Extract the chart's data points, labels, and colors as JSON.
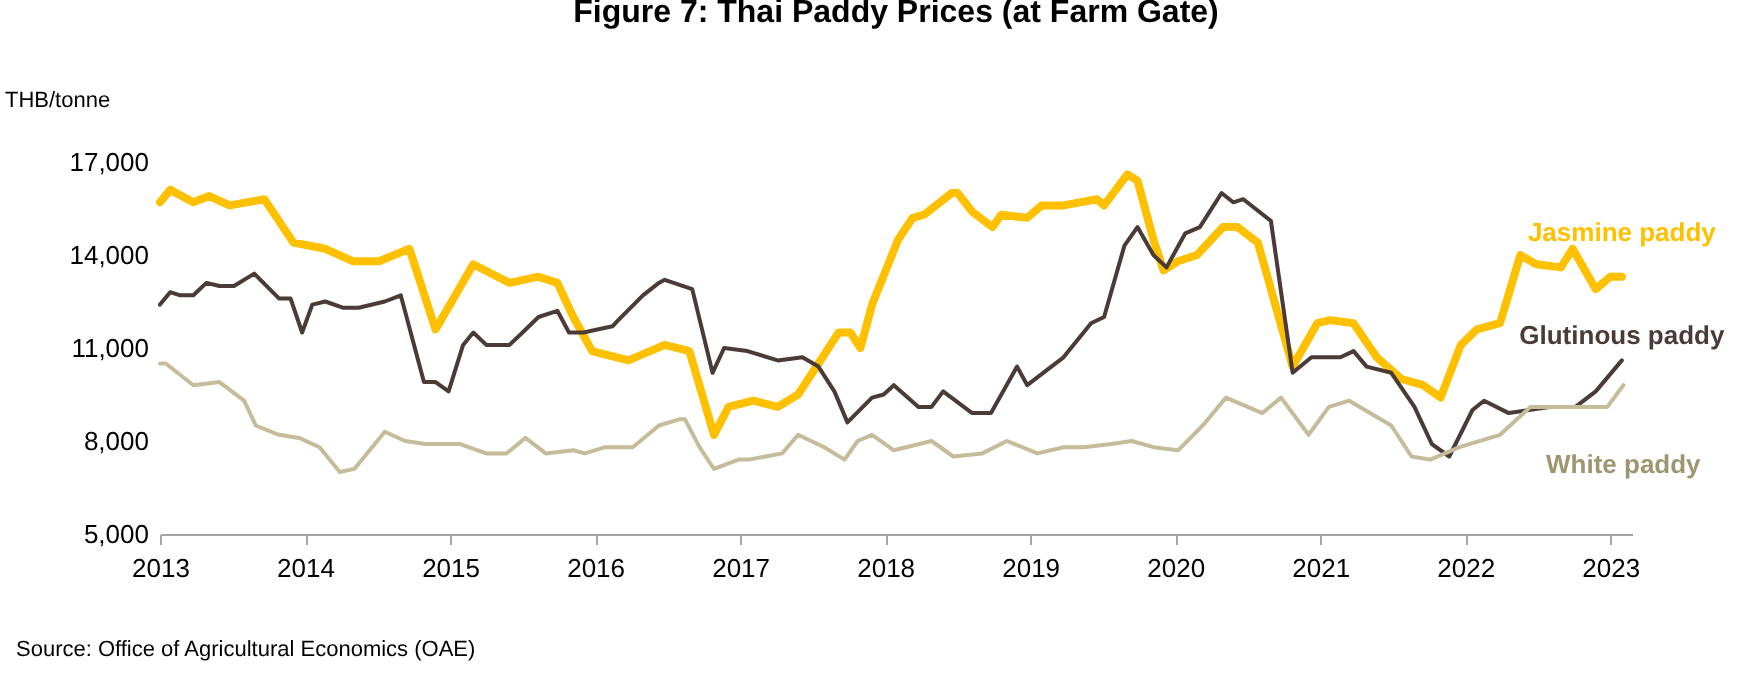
{
  "chart_data": {
    "type": "line",
    "title": "Figure 7: Thai Paddy Prices (at Farm Gate)",
    "ylabel": "THB/tonne",
    "annotations": [
      "Source: Office of Agricultural Economics (OAE)"
    ],
    "xlim": [
      2013,
      2023.15
    ],
    "xticks": [
      2013,
      2014,
      2015,
      2016,
      2017,
      2018,
      2019,
      2020,
      2021,
      2022,
      2023
    ],
    "ylim": [
      5000,
      17000
    ],
    "yticks": [
      {
        "value": 5000,
        "label": "5,000"
      },
      {
        "value": 8000,
        "label": "8,000"
      },
      {
        "value": 11000,
        "label": "11,000"
      },
      {
        "value": 14000,
        "label": "14,000"
      },
      {
        "value": 17000,
        "label": "17,000"
      }
    ],
    "grid": false,
    "legend": false,
    "series": [
      {
        "name": "Jasmine paddy",
        "color": "#ffc000",
        "x": [
          2013.0,
          2013.07,
          2013.23,
          2013.34,
          2013.48,
          2013.72,
          2013.92,
          2014.14,
          2014.33,
          2014.51,
          2014.72,
          2014.9,
          2015.16,
          2015.41,
          2015.61,
          2015.74,
          2015.85,
          2015.98,
          2016.23,
          2016.48,
          2016.65,
          2016.82,
          2016.92,
          2017.09,
          2017.26,
          2017.4,
          2017.68,
          2017.76,
          2017.83,
          2017.91,
          2018.09,
          2018.19,
          2018.27,
          2018.46,
          2018.5,
          2018.6,
          2018.74,
          2018.8,
          2018.98,
          2019.08,
          2019.23,
          2019.46,
          2019.51,
          2019.67,
          2019.74,
          2019.85,
          2019.92,
          2020.02,
          2020.15,
          2020.33,
          2020.43,
          2020.57,
          2020.81,
          2020.98,
          2021.07,
          2021.23,
          2021.39,
          2021.56,
          2021.71,
          2021.83,
          2021.97,
          2022.08,
          2022.24,
          2022.38,
          2022.49,
          2022.66,
          2022.74,
          2022.9,
          2023.0,
          2023.08
        ],
        "values": [
          15700,
          16100,
          15700,
          15900,
          15600,
          15800,
          14400,
          14200,
          13800,
          13800,
          14200,
          11600,
          13700,
          13100,
          13300,
          13100,
          12000,
          10900,
          10600,
          11100,
          10900,
          8200,
          9100,
          9300,
          9100,
          9500,
          11500,
          11500,
          11000,
          12400,
          14500,
          15200,
          15300,
          16000,
          16000,
          15400,
          14900,
          15300,
          15200,
          15600,
          15600,
          15800,
          15600,
          16600,
          16400,
          14500,
          13500,
          13800,
          14000,
          14900,
          14900,
          14400,
          10400,
          11800,
          11900,
          11800,
          10700,
          10000,
          9800,
          9400,
          11100,
          11600,
          11800,
          14000,
          13700,
          13600,
          14200,
          12900,
          13300,
          13300
        ]
      },
      {
        "name": "Glutinous paddy",
        "color": "#4a3b37",
        "x": [
          2013.0,
          2013.07,
          2013.14,
          2013.23,
          2013.32,
          2013.41,
          2013.51,
          2013.65,
          2013.82,
          2013.9,
          2013.98,
          2014.05,
          2014.14,
          2014.26,
          2014.37,
          2014.55,
          2014.66,
          2014.82,
          2014.9,
          2014.99,
          2015.09,
          2015.16,
          2015.25,
          2015.41,
          2015.5,
          2015.61,
          2015.74,
          2015.82,
          2015.92,
          2016.12,
          2016.16,
          2016.33,
          2016.44,
          2016.48,
          2016.67,
          2016.81,
          2016.89,
          2017.05,
          2017.26,
          2017.43,
          2017.54,
          2017.65,
          2017.74,
          2017.91,
          2017.99,
          2018.06,
          2018.23,
          2018.32,
          2018.4,
          2018.6,
          2018.73,
          2018.91,
          2018.98,
          2019.09,
          2019.23,
          2019.42,
          2019.51,
          2019.65,
          2019.74,
          2019.85,
          2019.94,
          2020.07,
          2020.17,
          2020.32,
          2020.4,
          2020.47,
          2020.66,
          2020.81,
          2020.94,
          2021.14,
          2021.23,
          2021.32,
          2021.49,
          2021.65,
          2021.77,
          2021.89,
          2022.05,
          2022.13,
          2022.3,
          2022.58,
          2022.76,
          2022.9,
          2023.08
        ],
        "values": [
          12400,
          12800,
          12700,
          12700,
          13100,
          13000,
          13000,
          13400,
          12600,
          12600,
          11500,
          12400,
          12500,
          12300,
          12300,
          12500,
          12700,
          9900,
          9900,
          9600,
          11100,
          11500,
          11100,
          11100,
          11500,
          12000,
          12200,
          11500,
          11500,
          11700,
          11900,
          12700,
          13100,
          13200,
          12900,
          10200,
          11000,
          10900,
          10600,
          10700,
          10400,
          9600,
          8600,
          9400,
          9500,
          9800,
          9100,
          9100,
          9600,
          8900,
          8900,
          10400,
          9800,
          10200,
          10700,
          11800,
          12000,
          14300,
          14900,
          14000,
          13600,
          14700,
          14900,
          16000,
          15700,
          15800,
          15100,
          10200,
          10700,
          10700,
          10900,
          10400,
          10200,
          9100,
          7900,
          7500,
          9000,
          9300,
          8900,
          9100,
          9100,
          9600,
          10600
        ]
      },
      {
        "name": "White paddy",
        "color": "#c4bc9a",
        "x": [
          2013.0,
          2013.04,
          2013.23,
          2013.41,
          2013.58,
          2013.66,
          2013.82,
          2013.96,
          2014.1,
          2014.24,
          2014.34,
          2014.55,
          2014.69,
          2014.83,
          2015.07,
          2015.25,
          2015.39,
          2015.52,
          2015.66,
          2015.85,
          2015.93,
          2016.07,
          2016.26,
          2016.44,
          2016.58,
          2016.62,
          2016.72,
          2016.82,
          2016.99,
          2017.06,
          2017.29,
          2017.4,
          2017.58,
          2017.72,
          2017.81,
          2017.91,
          2018.06,
          2018.32,
          2018.47,
          2018.67,
          2018.84,
          2019.05,
          2019.23,
          2019.37,
          2019.56,
          2019.7,
          2019.85,
          2020.02,
          2020.19,
          2020.35,
          2020.6,
          2020.73,
          2020.92,
          2021.06,
          2021.2,
          2021.49,
          2021.63,
          2021.76,
          2021.96,
          2022.24,
          2022.45,
          2022.8,
          2022.98,
          2023.09
        ],
        "values": [
          10500,
          10500,
          9800,
          9900,
          9300,
          8500,
          8200,
          8100,
          7800,
          7000,
          7100,
          8300,
          8000,
          7900,
          7900,
          7600,
          7600,
          8100,
          7600,
          7700,
          7600,
          7800,
          7800,
          8500,
          8700,
          8700,
          7800,
          7100,
          7400,
          7400,
          7600,
          8200,
          7800,
          7400,
          8000,
          8200,
          7700,
          8000,
          7500,
          7600,
          8000,
          7600,
          7800,
          7800,
          7900,
          8000,
          7800,
          7700,
          8500,
          9400,
          8900,
          9400,
          8200,
          9100,
          9300,
          8500,
          7500,
          7400,
          7800,
          8200,
          9100,
          9100,
          9100,
          9800
        ]
      }
    ]
  }
}
